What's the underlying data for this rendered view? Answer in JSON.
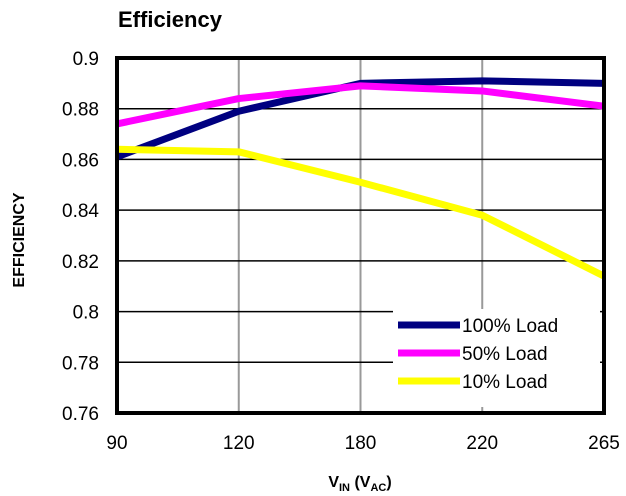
{
  "chart_data": {
    "type": "line",
    "title": "Efficiency",
    "ylabel": "EFFICIENCY",
    "xlabel": {
      "main": "V",
      "main_sub": "IN",
      "open": " (V",
      "paren_sub": "AC",
      "close": ")"
    },
    "categories": [
      "90",
      "120",
      "180",
      "220",
      "265"
    ],
    "ylim": [
      0.76,
      0.9
    ],
    "yticks": [
      "0.9",
      "0.88",
      "0.86",
      "0.84",
      "0.82",
      "0.8",
      "0.78",
      "0.76"
    ],
    "grid": {
      "vertical": true,
      "horizontal": true
    },
    "legend_position": "bottom-right",
    "series": [
      {
        "name": "100% Load",
        "color": "#000080",
        "values": [
          0.861,
          0.879,
          0.89,
          0.891,
          0.89
        ]
      },
      {
        "name": "50% Load",
        "color": "#ff00ff",
        "values": [
          0.874,
          0.884,
          0.889,
          0.887,
          0.881
        ]
      },
      {
        "name": "10% Load",
        "color": "#ffff00",
        "values": [
          0.864,
          0.863,
          0.851,
          0.838,
          0.814
        ]
      }
    ]
  }
}
